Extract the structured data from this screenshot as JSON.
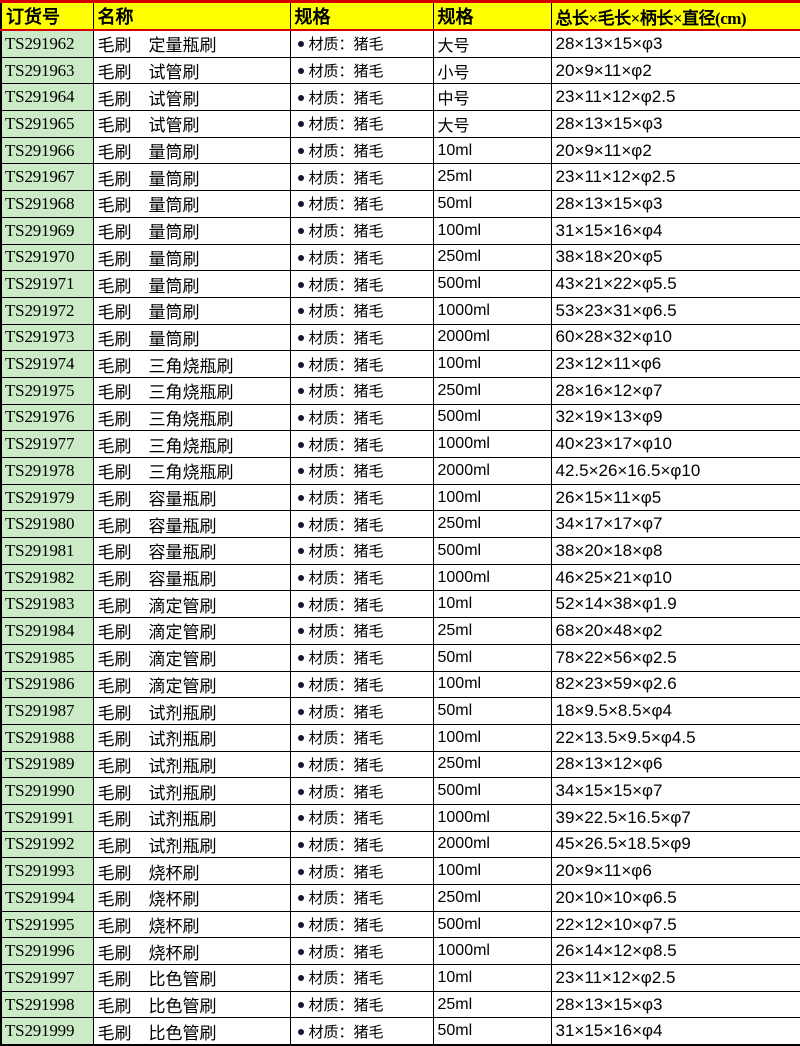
{
  "colors": {
    "header_bg": "#ffff00",
    "order_id_bg": "#cbeac6",
    "accent_red": "#d40000",
    "grid_border": "#000000",
    "bullet": "#141432"
  },
  "icons": {
    "bullet": "round-dot"
  },
  "table": {
    "headers": {
      "order_id": "订货号",
      "name": "名称",
      "spec_material": "规格",
      "spec_size": "规格",
      "dimensions": "总长×毛长×柄长×直径(cm)"
    },
    "rows": [
      {
        "id": "TS291962",
        "name": "毛刷　定量瓶刷",
        "material": "材质：猪毛",
        "size": "大号",
        "dims": "28×13×15×φ3"
      },
      {
        "id": "TS291963",
        "name": "毛刷　试管刷",
        "material": "材质：猪毛",
        "size": "小号",
        "dims": "20×9×11×φ2"
      },
      {
        "id": "TS291964",
        "name": "毛刷　试管刷",
        "material": "材质：猪毛",
        "size": "中号",
        "dims": "23×11×12×φ2.5"
      },
      {
        "id": "TS291965",
        "name": "毛刷　试管刷",
        "material": "材质：猪毛",
        "size": "大号",
        "dims": "28×13×15×φ3"
      },
      {
        "id": "TS291966",
        "name": "毛刷　量筒刷",
        "material": "材质：猪毛",
        "size": "10ml",
        "dims": "20×9×11×φ2"
      },
      {
        "id": "TS291967",
        "name": "毛刷　量筒刷",
        "material": "材质：猪毛",
        "size": "25ml",
        "dims": "23×11×12×φ2.5"
      },
      {
        "id": "TS291968",
        "name": "毛刷　量筒刷",
        "material": "材质：猪毛",
        "size": "50ml",
        "dims": "28×13×15×φ3"
      },
      {
        "id": "TS291969",
        "name": "毛刷　量筒刷",
        "material": "材质：猪毛",
        "size": "100ml",
        "dims": "31×15×16×φ4"
      },
      {
        "id": "TS291970",
        "name": "毛刷　量筒刷",
        "material": "材质：猪毛",
        "size": "250ml",
        "dims": "38×18×20×φ5"
      },
      {
        "id": "TS291971",
        "name": "毛刷　量筒刷",
        "material": "材质：猪毛",
        "size": "500ml",
        "dims": "43×21×22×φ5.5"
      },
      {
        "id": "TS291972",
        "name": "毛刷　量筒刷",
        "material": "材质：猪毛",
        "size": "1000ml",
        "dims": "53×23×31×φ6.5"
      },
      {
        "id": "TS291973",
        "name": "毛刷　量筒刷",
        "material": "材质：猪毛",
        "size": "2000ml",
        "dims": "60×28×32×φ10"
      },
      {
        "id": "TS291974",
        "name": "毛刷　三角烧瓶刷",
        "material": "材质：猪毛",
        "size": "100ml",
        "dims": "23×12×11×φ6"
      },
      {
        "id": "TS291975",
        "name": "毛刷　三角烧瓶刷",
        "material": "材质：猪毛",
        "size": "250ml",
        "dims": "28×16×12×φ7"
      },
      {
        "id": "TS291976",
        "name": "毛刷　三角烧瓶刷",
        "material": "材质：猪毛",
        "size": "500ml",
        "dims": "32×19×13×φ9"
      },
      {
        "id": "TS291977",
        "name": "毛刷　三角烧瓶刷",
        "material": "材质：猪毛",
        "size": "1000ml",
        "dims": "40×23×17×φ10"
      },
      {
        "id": "TS291978",
        "name": "毛刷　三角烧瓶刷",
        "material": "材质：猪毛",
        "size": "2000ml",
        "dims": "42.5×26×16.5×φ10"
      },
      {
        "id": "TS291979",
        "name": "毛刷　容量瓶刷",
        "material": "材质：猪毛",
        "size": "100ml",
        "dims": "26×15×11×φ5"
      },
      {
        "id": "TS291980",
        "name": "毛刷　容量瓶刷",
        "material": "材质：猪毛",
        "size": "250ml",
        "dims": "34×17×17×φ7"
      },
      {
        "id": "TS291981",
        "name": "毛刷　容量瓶刷",
        "material": "材质：猪毛",
        "size": "500ml",
        "dims": "38×20×18×φ8"
      },
      {
        "id": "TS291982",
        "name": "毛刷　容量瓶刷",
        "material": "材质：猪毛",
        "size": "1000ml",
        "dims": "46×25×21×φ10"
      },
      {
        "id": "TS291983",
        "name": "毛刷　滴定管刷",
        "material": "材质：猪毛",
        "size": "10ml",
        "dims": "52×14×38×φ1.9"
      },
      {
        "id": "TS291984",
        "name": "毛刷　滴定管刷",
        "material": "材质：猪毛",
        "size": "25ml",
        "dims": "68×20×48×φ2"
      },
      {
        "id": "TS291985",
        "name": "毛刷　滴定管刷",
        "material": "材质：猪毛",
        "size": "50ml",
        "dims": "78×22×56×φ2.5"
      },
      {
        "id": "TS291986",
        "name": "毛刷　滴定管刷",
        "material": "材质：猪毛",
        "size": "100ml",
        "dims": "82×23×59×φ2.6"
      },
      {
        "id": "TS291987",
        "name": "毛刷　试剂瓶刷",
        "material": "材质：猪毛",
        "size": "50ml",
        "dims": "18×9.5×8.5×φ4"
      },
      {
        "id": "TS291988",
        "name": "毛刷　试剂瓶刷",
        "material": "材质：猪毛",
        "size": "100ml",
        "dims": "22×13.5×9.5×φ4.5"
      },
      {
        "id": "TS291989",
        "name": "毛刷　试剂瓶刷",
        "material": "材质：猪毛",
        "size": "250ml",
        "dims": "28×13×12×φ6"
      },
      {
        "id": "TS291990",
        "name": "毛刷　试剂瓶刷",
        "material": "材质：猪毛",
        "size": "500ml",
        "dims": "34×15×15×φ7"
      },
      {
        "id": "TS291991",
        "name": "毛刷　试剂瓶刷",
        "material": "材质：猪毛",
        "size": "1000ml",
        "dims": "39×22.5×16.5×φ7"
      },
      {
        "id": "TS291992",
        "name": "毛刷　试剂瓶刷",
        "material": "材质：猪毛",
        "size": "2000ml",
        "dims": "45×26.5×18.5×φ9"
      },
      {
        "id": "TS291993",
        "name": "毛刷　烧杯刷",
        "material": "材质：猪毛",
        "size": "100ml",
        "dims": "20×9×11×φ6"
      },
      {
        "id": "TS291994",
        "name": "毛刷　烧杯刷",
        "material": "材质：猪毛",
        "size": "250ml",
        "dims": "20×10×10×φ6.5"
      },
      {
        "id": "TS291995",
        "name": "毛刷　烧杯刷",
        "material": "材质：猪毛",
        "size": "500ml",
        "dims": "22×12×10×φ7.5"
      },
      {
        "id": "TS291996",
        "name": "毛刷　烧杯刷",
        "material": "材质：猪毛",
        "size": "1000ml",
        "dims": "26×14×12×φ8.5"
      },
      {
        "id": "TS291997",
        "name": "毛刷　比色管刷",
        "material": "材质：猪毛",
        "size": "10ml",
        "dims": "23×11×12×φ2.5"
      },
      {
        "id": "TS291998",
        "name": "毛刷　比色管刷",
        "material": "材质：猪毛",
        "size": "25ml",
        "dims": "28×13×15×φ3"
      },
      {
        "id": "TS291999",
        "name": "毛刷　比色管刷",
        "material": "材质：猪毛",
        "size": "50ml",
        "dims": "31×15×16×φ4"
      }
    ]
  }
}
